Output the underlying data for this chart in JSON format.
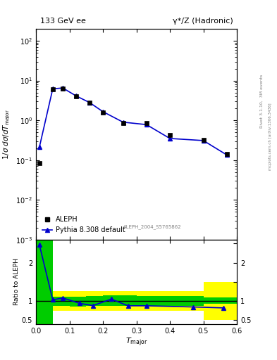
{
  "title_left": "133 GeV ee",
  "title_right": "γ*/Z (Hadronic)",
  "ylabel_main": "1/σ dσ/dT_{major}",
  "ylabel_ratio": "Ratio to ALEPH",
  "right_label": "Rivet 3.1.10,  3M events",
  "right_label2": "mcplots.cern.ch [arXiv:1306.3436]",
  "watermark": "ALEPH_2004_S5765862",
  "data_x": [
    0.01,
    0.05,
    0.08,
    0.12,
    0.16,
    0.2,
    0.26,
    0.33,
    0.4,
    0.5,
    0.57
  ],
  "data_y_data": [
    0.085,
    6.0,
    6.2,
    4.0,
    2.8,
    1.6,
    0.85,
    0.85,
    0.42,
    0.32,
    0.14
  ],
  "data_y_mc": [
    0.21,
    6.2,
    6.5,
    4.1,
    2.8,
    1.65,
    0.9,
    0.78,
    0.35,
    0.31,
    0.135
  ],
  "ratio_x": [
    0.01,
    0.05,
    0.08,
    0.13,
    0.17,
    0.225,
    0.275,
    0.33,
    0.47,
    0.56
  ],
  "ratio_y": [
    2.47,
    1.03,
    1.08,
    0.94,
    0.88,
    1.05,
    0.875,
    0.875,
    0.845,
    0.82
  ],
  "color_data": "#000000",
  "color_mc": "#0000cc",
  "color_green": "#00cc00",
  "color_yellow": "#ffff00",
  "legend_data": "ALEPH",
  "legend_mc": "Pythia 8.308 default",
  "ylim_main": [
    0.001,
    200
  ],
  "ylim_ratio": [
    0.4,
    2.6
  ],
  "xlim": [
    0.0,
    0.6
  ],
  "band_yellow_bins": [
    [
      0.0,
      0.05
    ],
    [
      0.05,
      0.1
    ],
    [
      0.1,
      0.15
    ],
    [
      0.15,
      0.2
    ],
    [
      0.2,
      0.3
    ],
    [
      0.3,
      0.4
    ],
    [
      0.4,
      0.5
    ],
    [
      0.5,
      0.6
    ]
  ],
  "band_yellow_low": [
    0.4,
    0.75,
    0.75,
    0.75,
    0.75,
    0.75,
    0.75,
    0.5
  ],
  "band_yellow_high": [
    2.6,
    1.25,
    1.25,
    1.25,
    1.25,
    1.25,
    1.25,
    1.5
  ],
  "band_green_bins": [
    [
      0.0,
      0.05
    ],
    [
      0.05,
      0.1
    ],
    [
      0.1,
      0.15
    ],
    [
      0.15,
      0.2
    ],
    [
      0.2,
      0.3
    ],
    [
      0.3,
      0.4
    ],
    [
      0.4,
      0.5
    ],
    [
      0.5,
      0.6
    ]
  ],
  "band_green_low": [
    0.4,
    0.88,
    0.85,
    0.88,
    0.88,
    0.88,
    0.88,
    0.92
  ],
  "band_green_high": [
    2.6,
    1.12,
    1.12,
    1.13,
    1.15,
    1.13,
    1.13,
    1.1
  ]
}
